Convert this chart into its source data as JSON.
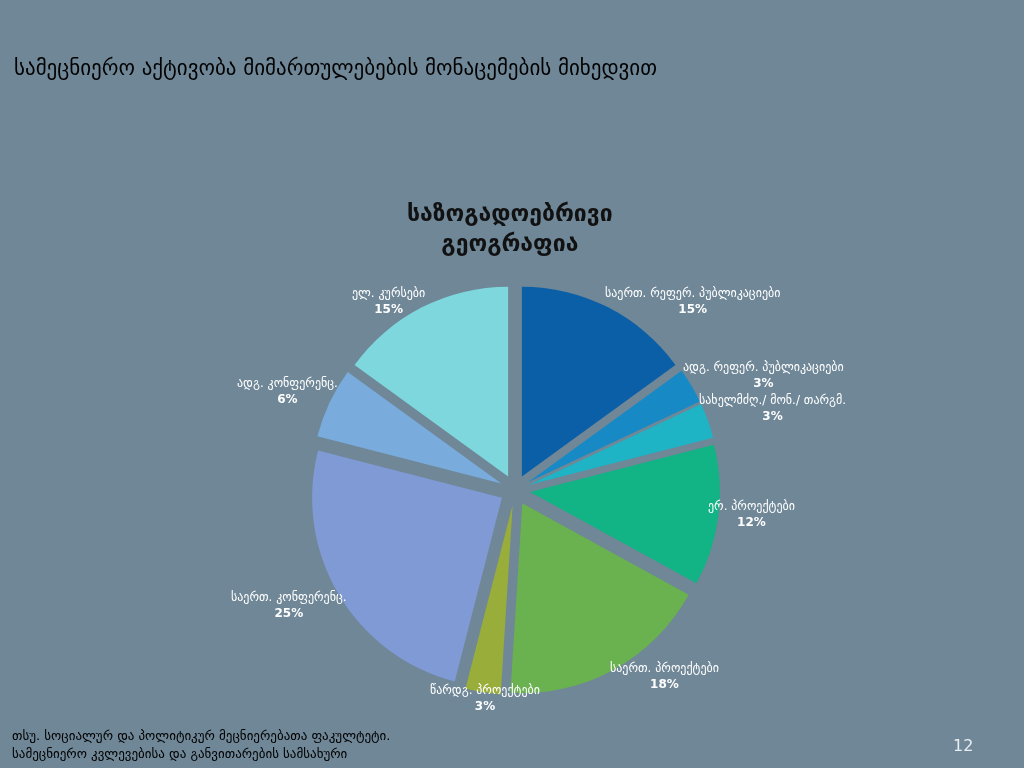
{
  "chart_data": {
    "type": "pie",
    "title": "სამეცნიერო აქტივობა მიმართულებების მონაცემების მიხედვით",
    "subtitle": "საზოგადოებრივი გეოგრაფია",
    "categories": [
      "საერთ. რეფერ. პუბლიკაციები",
      "ადგ. რეფერ. პუბლიკაციები",
      "სახელმძღ./ მონ./ თარგმ.",
      "ერ. პროექტები",
      "საერთ. პროექტები",
      "წარდგ. პროექტები",
      "საერთ. კონფერენც.",
      "ადგ. კონფერენც.",
      "ელ. კურსები"
    ],
    "values": [
      15,
      3,
      3,
      12,
      18,
      3,
      25,
      6,
      15
    ],
    "value_labels": [
      "15%",
      "3%",
      "3%",
      "12%",
      "18%",
      "3%",
      "25%",
      "6%",
      "15%"
    ],
    "colors": [
      "#0b5fa7",
      "#178ac5",
      "#1fb3c6",
      "#12b384",
      "#6ab150",
      "#99ad3b",
      "#7f9ad5",
      "#79acdd",
      "#7ed7dd"
    ],
    "legend": false,
    "annotations": [
      "თსუ. სოციალურ და პოლიტიკურ მეცნიერებათა ფაკულტეტი.",
      "სამეცნიერო კვლევებისა და განვითარების სამსახური",
      "12"
    ]
  }
}
